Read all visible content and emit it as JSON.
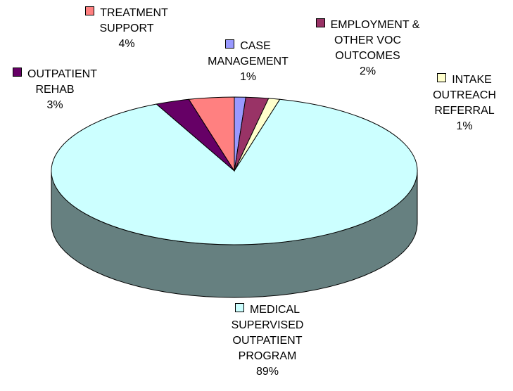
{
  "chart_data": {
    "type": "pie",
    "three_d": true,
    "categories": [
      "CASE MANAGEMENT",
      "EMPLOYMENT & OTHER VOC OUTCOMES",
      "INTAKE OUTREACH REFERRAL",
      "MEDICAL SUPERVISED OUTPATIENT PROGRAM",
      "OUTPATIENT REHAB",
      "TREATMENT SUPPORT"
    ],
    "values": [
      1,
      2,
      1,
      89,
      3,
      4
    ],
    "value_labels": [
      "1%",
      "2%",
      "1%",
      "89%",
      "3%",
      "4%"
    ],
    "colors": [
      "#9999ff",
      "#993366",
      "#ffffcc",
      "#ccffff",
      "#660066",
      "#ff8080"
    ]
  }
}
